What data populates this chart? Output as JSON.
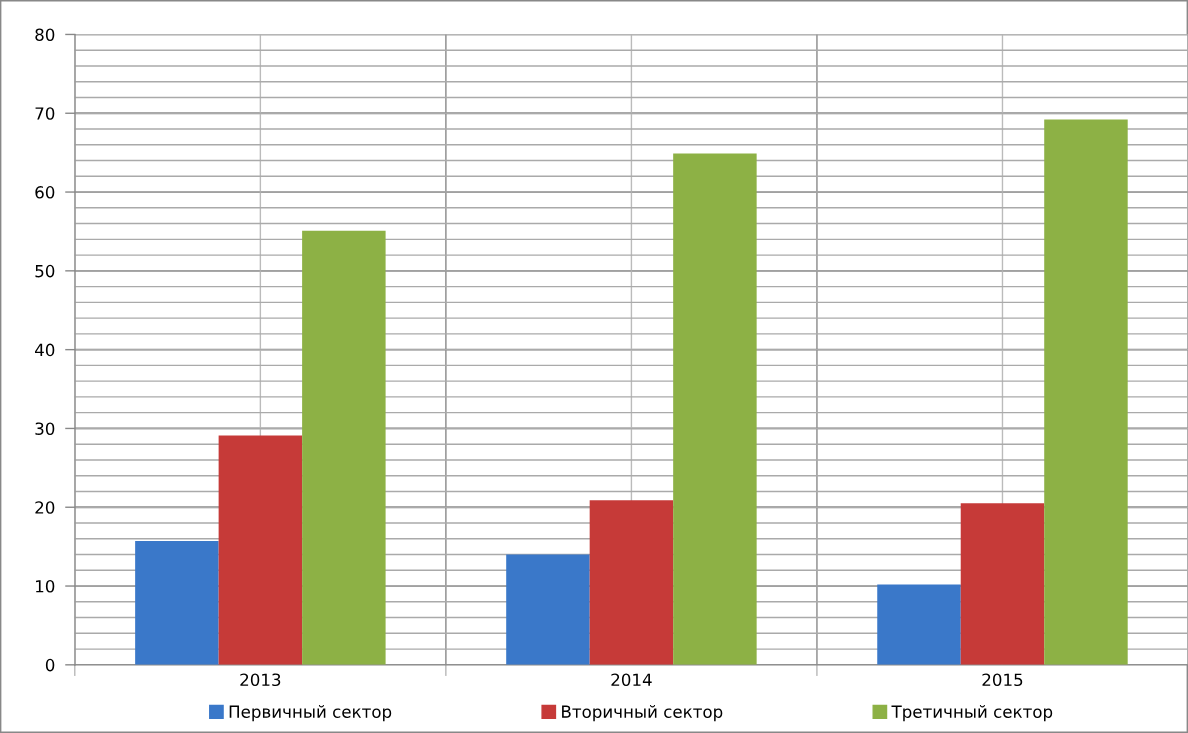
{
  "chart_data": {
    "type": "bar",
    "categories": [
      "2013",
      "2014",
      "2015"
    ],
    "series": [
      {
        "name": "Первичный сектор",
        "color": "#3a78c9",
        "values": [
          15.7,
          14.0,
          10.2
        ]
      },
      {
        "name": "Вторичный сектор",
        "color": "#c63a38",
        "values": [
          29.1,
          20.9,
          20.5
        ]
      },
      {
        "name": "Третичный сектор",
        "color": "#8db145",
        "values": [
          55.1,
          64.9,
          69.2
        ]
      }
    ],
    "ylim": [
      0,
      80
    ],
    "yticks": [
      0,
      {
        "value": 2,
        "label": null
      },
      {
        "value": 4,
        "label": null
      },
      {
        "value": 6,
        "label": null
      },
      {
        "value": 8,
        "label": null
      },
      10,
      {
        "value": 12,
        "label": null
      },
      {
        "value": 14,
        "label": null
      },
      {
        "value": 16,
        "label": null
      },
      {
        "value": 18,
        "label": null
      },
      20,
      {
        "value": 22,
        "label": null
      },
      {
        "value": 24,
        "label": null
      },
      {
        "value": 26,
        "label": null
      },
      {
        "value": 28,
        "label": null
      },
      30,
      {
        "value": 32,
        "label": null
      },
      {
        "value": 34,
        "label": null
      },
      {
        "value": 36,
        "label": null
      },
      {
        "value": 38,
        "label": null
      },
      40,
      {
        "value": 42,
        "label": null
      },
      {
        "value": 44,
        "label": null
      },
      {
        "value": 46,
        "label": null
      },
      {
        "value": 48,
        "label": null
      },
      50,
      {
        "value": 52,
        "label": null
      },
      {
        "value": 54,
        "label": null
      },
      {
        "value": 56,
        "label": null
      },
      {
        "value": 58,
        "label": null
      },
      60,
      {
        "value": 62,
        "label": null
      },
      {
        "value": 64,
        "label": null
      },
      {
        "value": 66,
        "label": null
      },
      {
        "value": 68,
        "label": null
      },
      70,
      {
        "value": 72,
        "label": null
      },
      {
        "value": 74,
        "label": null
      },
      {
        "value": 76,
        "label": null
      },
      {
        "value": 78,
        "label": null
      },
      80
    ],
    "grid": true,
    "legend": "bottom"
  }
}
